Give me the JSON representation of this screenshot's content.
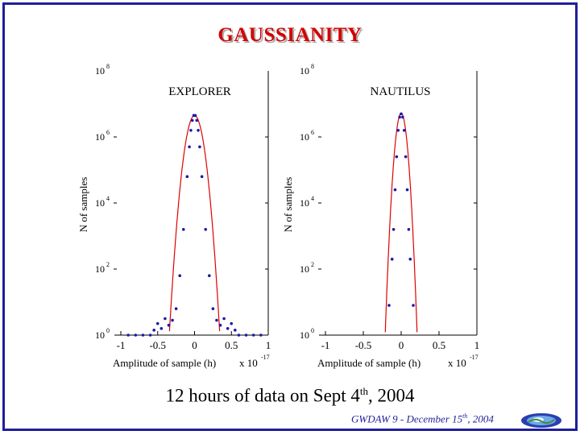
{
  "slide": {
    "title": "GAUSSIANITY",
    "caption_main": "12 hours of data on Sept 4",
    "caption_sup": "th",
    "caption_end": ", 2004",
    "footer_main": "GWDAW 9 - December 15",
    "footer_sup": "th",
    "footer_end": ", 2004",
    "logo_icon": "earth-globe-logo",
    "colors": {
      "border": "#1f1f9a",
      "title": "#d40000",
      "marker": "#1a1aa8",
      "fit_line": "#e00000"
    }
  },
  "chart_data": [
    {
      "type": "scatter",
      "title": "EXPLORER",
      "xlabel": "Amplitude of sample (h)",
      "ylabel": "N of samples",
      "x_multiplier": "x 10",
      "x_multiplier_exp": "-17",
      "xlim": [
        -1,
        1
      ],
      "xticks": [
        "-1",
        "-0.5",
        "0",
        "0.5",
        "1"
      ],
      "ylim_log10": [
        0,
        8
      ],
      "yticks": [
        {
          "base": "10",
          "exp": "0"
        },
        {
          "base": "10",
          "exp": "2"
        },
        {
          "base": "10",
          "exp": "4"
        },
        {
          "base": "10",
          "exp": "6"
        },
        {
          "base": "10",
          "exp": "8"
        }
      ],
      "log_scale_y": true,
      "series": [
        {
          "kind": "points",
          "x": [
            -0.9,
            -0.8,
            -0.7,
            -0.6,
            -0.55,
            -0.5,
            -0.45,
            -0.4,
            -0.35,
            -0.3,
            -0.25,
            -0.2,
            -0.15,
            -0.1,
            -0.07,
            -0.05,
            -0.03,
            -0.01,
            0.01,
            0.03,
            0.05,
            0.07,
            0.1,
            0.15,
            0.2,
            0.25,
            0.3,
            0.35,
            0.4,
            0.45,
            0.5,
            0.55,
            0.6,
            0.7,
            0.8,
            0.9
          ],
          "log10_y": [
            0,
            0,
            0,
            0,
            0.15,
            0.35,
            0.2,
            0.5,
            0.3,
            0.45,
            0.8,
            1.8,
            3.2,
            4.8,
            5.7,
            6.2,
            6.5,
            6.65,
            6.65,
            6.5,
            6.2,
            5.7,
            4.8,
            3.2,
            1.8,
            0.8,
            0.45,
            0.3,
            0.5,
            0.2,
            0.35,
            0.15,
            0,
            0,
            0,
            0
          ]
        },
        {
          "kind": "gaussian-fit",
          "peak_log10": 6.65,
          "sigma": 0.062
        }
      ]
    },
    {
      "type": "scatter",
      "title": "NAUTILUS",
      "xlabel": "Amplitude of sample (h)",
      "ylabel": "N of samples",
      "x_multiplier": "x 10",
      "x_multiplier_exp": "-17",
      "xlim": [
        -1,
        1
      ],
      "xticks": [
        "-1",
        "-0.5",
        "0",
        "0.5",
        "1"
      ],
      "ylim_log10": [
        0,
        8
      ],
      "yticks": [
        {
          "base": "10",
          "exp": "0"
        },
        {
          "base": "10",
          "exp": "2"
        },
        {
          "base": "10",
          "exp": "4"
        },
        {
          "base": "10",
          "exp": "6"
        },
        {
          "base": "10",
          "exp": "8"
        }
      ],
      "log_scale_y": true,
      "series": [
        {
          "kind": "points",
          "x": [
            -0.16,
            -0.12,
            -0.1,
            -0.08,
            -0.06,
            -0.04,
            -0.02,
            0,
            0.02,
            0.04,
            0.06,
            0.08,
            0.1,
            0.12,
            0.16
          ],
          "log10_y": [
            0.9,
            2.3,
            3.2,
            4.4,
            5.4,
            6.2,
            6.6,
            6.7,
            6.6,
            6.2,
            5.4,
            4.4,
            3.2,
            2.3,
            0.9
          ]
        },
        {
          "kind": "gaussian-fit",
          "peak_log10": 6.72,
          "sigma": 0.038
        }
      ]
    }
  ]
}
